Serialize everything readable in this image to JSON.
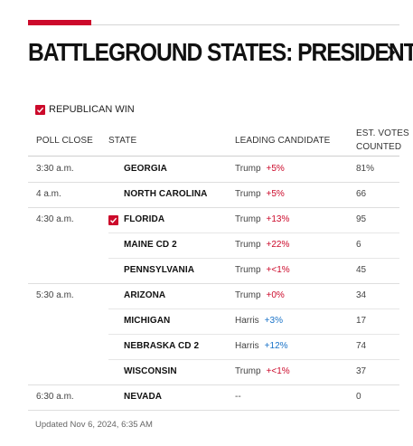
{
  "title": "BATTLEGROUND STATES: PRESIDENT",
  "legend": {
    "label": "REPUBLICAN WIN",
    "color": "#cc0a2b"
  },
  "columns": {
    "poll_close": "POLL CLOSE",
    "state": "STATE",
    "leading": "LEADING CANDIDATE",
    "votes_line1": "EST. VOTES",
    "votes_line2": "COUNTED"
  },
  "colors": {
    "republican": "#cc0a2b",
    "democrat": "#1a73c8",
    "accent": "#cc0a2b"
  },
  "rows": [
    {
      "time": "3:30 a.m.",
      "state": "GEORGIA",
      "candidate": "Trump",
      "margin": "+5%",
      "party": "R",
      "votes": "81%",
      "won": false
    },
    {
      "time": "4 a.m.",
      "state": "NORTH CAROLINA",
      "candidate": "Trump",
      "margin": "+5%",
      "party": "R",
      "votes": "66",
      "won": false
    },
    {
      "time": "4:30 a.m.",
      "state": "FLORIDA",
      "candidate": "Trump",
      "margin": "+13%",
      "party": "R",
      "votes": "95",
      "won": true
    },
    {
      "time": "",
      "state": "MAINE CD 2",
      "candidate": "Trump",
      "margin": "+22%",
      "party": "R",
      "votes": "6",
      "won": false
    },
    {
      "time": "",
      "state": "PENNSYLVANIA",
      "candidate": "Trump",
      "margin": "+<1%",
      "party": "R",
      "votes": "45",
      "won": false
    },
    {
      "time": "5:30 a.m.",
      "state": "ARIZONA",
      "candidate": "Trump",
      "margin": "+0%",
      "party": "R",
      "votes": "34",
      "won": false
    },
    {
      "time": "",
      "state": "MICHIGAN",
      "candidate": "Harris",
      "margin": "+3%",
      "party": "D",
      "votes": "17",
      "won": false
    },
    {
      "time": "",
      "state": "NEBRASKA CD 2",
      "candidate": "Harris",
      "margin": "+12%",
      "party": "D",
      "votes": "74",
      "won": false
    },
    {
      "time": "",
      "state": "WISCONSIN",
      "candidate": "Trump",
      "margin": "+<1%",
      "party": "R",
      "votes": "37",
      "won": false
    },
    {
      "time": "6:30 a.m.",
      "state": "NEVADA",
      "candidate": "--",
      "margin": "",
      "party": "",
      "votes": "0",
      "won": false
    }
  ],
  "updated": "Updated Nov 6, 2024, 6:35 AM"
}
